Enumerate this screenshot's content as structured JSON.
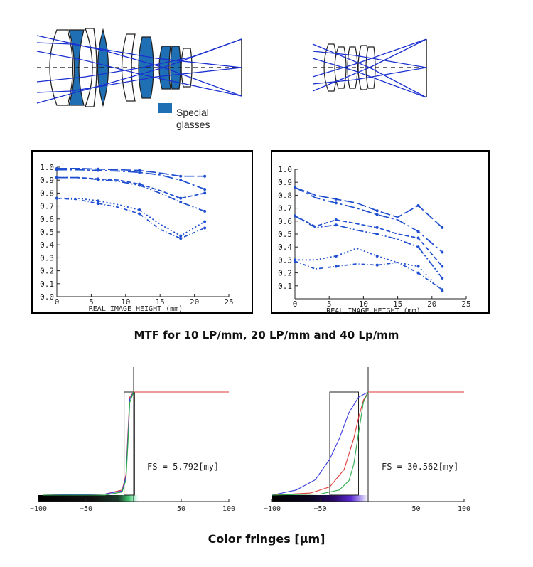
{
  "legend": {
    "label_line1": "Special",
    "label_line2": "glasses",
    "swatch_color": "#1f6fb5"
  },
  "mtf_caption": "MTF for 10 LP/mm, 20 LP/mm and 40 Lp/mm",
  "fringe_caption": "Color fringes [µm]",
  "chart_data": [
    {
      "type": "line",
      "xlabel": "REAL IMAGE HEIGHT (mm)",
      "xlim": [
        0,
        25
      ],
      "ylim": [
        0.0,
        1.0
      ],
      "xticks": [
        0,
        5,
        10,
        15,
        20,
        25
      ],
      "yticks": [
        "1.0",
        "0.9",
        "0.8",
        "0.7",
        "0.6",
        "0.5",
        "0.4",
        "0.3",
        "0.2",
        "0.1",
        "0.0"
      ],
      "series": [
        {
          "x": [
            0,
            3,
            6,
            9,
            12,
            15,
            18,
            21.5
          ],
          "y": [
            0.99,
            0.99,
            0.985,
            0.98,
            0.975,
            0.955,
            0.93,
            0.93
          ]
        },
        {
          "x": [
            0,
            3,
            6,
            9,
            12,
            15,
            18,
            21.5
          ],
          "y": [
            0.98,
            0.98,
            0.975,
            0.97,
            0.96,
            0.94,
            0.9,
            0.83
          ]
        },
        {
          "x": [
            0,
            3,
            6,
            9,
            12,
            15,
            18,
            21.5
          ],
          "y": [
            0.92,
            0.92,
            0.91,
            0.9,
            0.87,
            0.82,
            0.76,
            0.8
          ]
        },
        {
          "x": [
            0,
            3,
            6,
            9,
            12,
            15,
            18,
            21.5
          ],
          "y": [
            0.92,
            0.92,
            0.905,
            0.89,
            0.86,
            0.8,
            0.73,
            0.66
          ]
        },
        {
          "x": [
            0,
            3,
            6,
            9,
            12,
            15,
            18,
            21.5
          ],
          "y": [
            0.76,
            0.76,
            0.74,
            0.71,
            0.67,
            0.56,
            0.47,
            0.58
          ]
        },
        {
          "x": [
            0,
            3,
            6,
            9,
            12,
            15,
            18,
            21.5
          ],
          "y": [
            0.76,
            0.75,
            0.72,
            0.69,
            0.64,
            0.52,
            0.45,
            0.53
          ]
        }
      ]
    },
    {
      "type": "line",
      "xlabel": "REAL IMAGE HEIGHT (mm)",
      "xlim": [
        0,
        25
      ],
      "ylim": [
        0.0,
        1.0
      ],
      "xticks": [
        0,
        5,
        10,
        15,
        20,
        25
      ],
      "yticks": [
        "1.0",
        "0.9",
        "0.8",
        "0.7",
        "0.6",
        "0.5",
        "0.4",
        "0.3",
        "0.2",
        "0.1"
      ],
      "series": [
        {
          "x": [
            0,
            3,
            6,
            9,
            12,
            15,
            18,
            21.5
          ],
          "y": [
            0.86,
            0.8,
            0.77,
            0.74,
            0.68,
            0.63,
            0.72,
            0.55
          ]
        },
        {
          "x": [
            0,
            3,
            6,
            9,
            12,
            15,
            18,
            21.5
          ],
          "y": [
            0.86,
            0.78,
            0.74,
            0.7,
            0.65,
            0.61,
            0.52,
            0.36
          ]
        },
        {
          "x": [
            0,
            3,
            6,
            9,
            12,
            15,
            18,
            21.5
          ],
          "y": [
            0.64,
            0.56,
            0.61,
            0.58,
            0.55,
            0.5,
            0.47,
            0.25
          ]
        },
        {
          "x": [
            0,
            3,
            6,
            9,
            12,
            15,
            18,
            21.5
          ],
          "y": [
            0.64,
            0.55,
            0.57,
            0.53,
            0.5,
            0.46,
            0.4,
            0.16
          ]
        },
        {
          "x": [
            0,
            3,
            6,
            9,
            12,
            15,
            18,
            21.5
          ],
          "y": [
            0.3,
            0.3,
            0.33,
            0.39,
            0.33,
            0.28,
            0.25,
            0.06
          ]
        },
        {
          "x": [
            0,
            3,
            6,
            9,
            12,
            15,
            18,
            21.5
          ],
          "y": [
            0.29,
            0.23,
            0.25,
            0.27,
            0.26,
            0.28,
            0.2,
            0.07
          ]
        }
      ]
    },
    {
      "type": "line",
      "xlim": [
        -100,
        100
      ],
      "xticks": [
        -100,
        -50,
        50,
        100
      ],
      "annotation": "FS = 5.792[my]",
      "series": [
        {
          "color": "#e03a3a",
          "x": [
            -95,
            -30,
            -12,
            -8,
            -6,
            -4,
            0,
            100
          ],
          "y": [
            0.0,
            0.01,
            0.05,
            0.2,
            0.6,
            0.95,
            1.0,
            1.0
          ]
        },
        {
          "color": "#3a3ae0",
          "x": [
            -95,
            -30,
            -12,
            -8,
            -6,
            -4,
            0
          ],
          "y": [
            0.0,
            0.01,
            0.04,
            0.18,
            0.55,
            0.93,
            1.0
          ]
        },
        {
          "color": "#2aa84a",
          "x": [
            -95,
            -30,
            -12,
            -8,
            -6,
            -4,
            0
          ],
          "y": [
            0.0,
            0.0,
            0.03,
            0.15,
            0.5,
            0.9,
            1.0
          ]
        }
      ]
    },
    {
      "type": "line",
      "xlim": [
        -100,
        100
      ],
      "xticks": [
        -100,
        -50,
        50,
        100
      ],
      "annotation": "FS = 30.562[my]",
      "series": [
        {
          "color": "#3a3ae0",
          "x": [
            -100,
            -75,
            -55,
            -40,
            -30,
            -20,
            -10,
            0
          ],
          "y": [
            0.0,
            0.05,
            0.15,
            0.35,
            0.55,
            0.8,
            0.95,
            1.0
          ]
        },
        {
          "color": "#e03a3a",
          "x": [
            -100,
            -60,
            -40,
            -25,
            -15,
            -10,
            -5,
            0,
            100
          ],
          "y": [
            0.0,
            0.02,
            0.08,
            0.25,
            0.55,
            0.75,
            0.92,
            1.0,
            1.0
          ]
        },
        {
          "color": "#2aa84a",
          "x": [
            -100,
            -50,
            -30,
            -20,
            -15,
            -10,
            -5,
            0
          ],
          "y": [
            0.0,
            0.01,
            0.05,
            0.14,
            0.3,
            0.6,
            0.9,
            1.0
          ]
        }
      ]
    }
  ]
}
